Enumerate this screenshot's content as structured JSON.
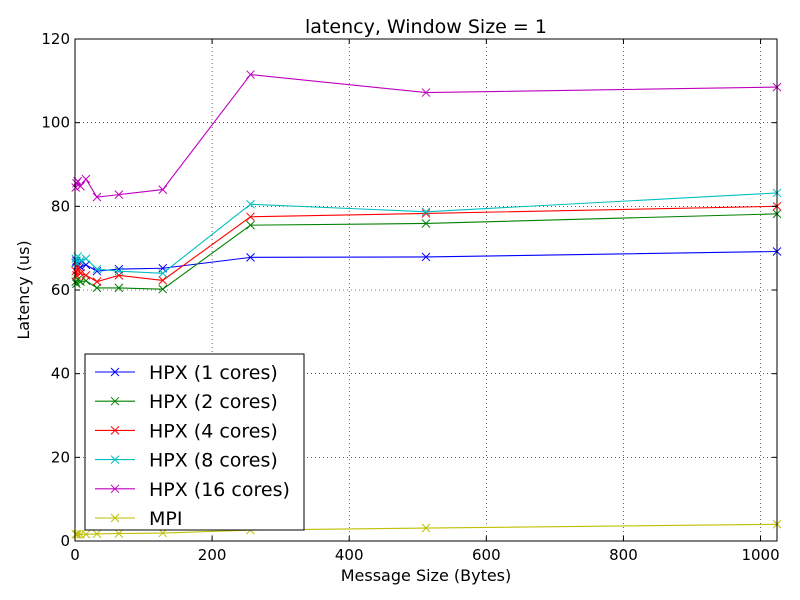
{
  "chart_data": {
    "type": "line",
    "title": "latency, Window Size = 1",
    "xlabel": "Message Size (Bytes)",
    "ylabel": "Latency (us)",
    "xlim": [
      0,
      1024
    ],
    "ylim": [
      0,
      120
    ],
    "x_ticks": [
      0,
      200,
      400,
      600,
      800,
      1000
    ],
    "y_ticks": [
      0,
      20,
      40,
      60,
      80,
      100,
      120
    ],
    "grid": true,
    "grid_style": "dotted",
    "marker": "x",
    "legend_position": "lower-left",
    "x": [
      1,
      2,
      4,
      8,
      16,
      32,
      64,
      128,
      256,
      512,
      1024
    ],
    "series": [
      {
        "name": "HPX (1 cores)",
        "color": "#0000ff",
        "values": [
          66.5,
          67.0,
          66.0,
          65.5,
          66.0,
          64.5,
          65.0,
          65.2,
          67.8,
          67.9,
          69.2
        ]
      },
      {
        "name": "HPX (2 cores)",
        "color": "#008000",
        "values": [
          62.0,
          61.5,
          62.5,
          62.0,
          62.2,
          60.5,
          60.5,
          60.2,
          75.5,
          75.9,
          78.2
        ]
      },
      {
        "name": "HPX (4 cores)",
        "color": "#ff0000",
        "values": [
          64.5,
          63.5,
          65.5,
          64.0,
          63.5,
          62.0,
          63.5,
          62.3,
          77.5,
          78.3,
          80.0
        ]
      },
      {
        "name": "HPX (8 cores)",
        "color": "#00bfbf",
        "values": [
          67.5,
          66.5,
          68.0,
          67.0,
          67.5,
          65.0,
          64.5,
          64.0,
          80.5,
          78.7,
          83.2
        ]
      },
      {
        "name": "HPX (16 cores)",
        "color": "#bf00bf",
        "values": [
          84.5,
          85.5,
          86.0,
          84.8,
          86.5,
          82.2,
          82.8,
          84.0,
          111.5,
          107.2,
          108.5
        ]
      },
      {
        "name": "MPI",
        "color": "#bfbf00",
        "values": [
          1.6,
          1.6,
          1.6,
          1.6,
          1.6,
          1.7,
          1.8,
          1.9,
          2.6,
          3.1,
          4.0
        ]
      }
    ]
  }
}
